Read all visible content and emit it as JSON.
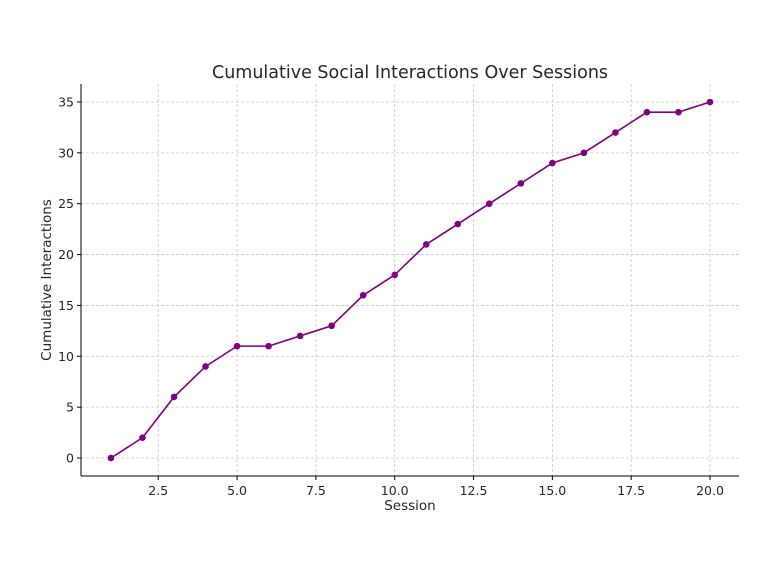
{
  "chart_data": {
    "type": "line",
    "title": "Cumulative Social Interactions Over Sessions",
    "xlabel": "Session",
    "ylabel": "Cumulative Interactions",
    "x": [
      1,
      2,
      3,
      4,
      5,
      6,
      7,
      8,
      9,
      10,
      11,
      12,
      13,
      14,
      15,
      16,
      17,
      18,
      19,
      20
    ],
    "series": [
      {
        "name": "Cumulative Interactions",
        "color": "#800080",
        "values": [
          0,
          2,
          6,
          9,
          11,
          11,
          12,
          13,
          16,
          18,
          21,
          23,
          25,
          27,
          29,
          30,
          32,
          34,
          34,
          35
        ]
      }
    ],
    "xlim": [
      0.05,
      20.92
    ],
    "ylim": [
      -1.77,
      36.77
    ],
    "xticks": [
      2.5,
      5.0,
      7.5,
      10.0,
      12.5,
      15.0,
      17.5,
      20.0
    ],
    "xtick_labels": [
      "2.5",
      "5.0",
      "7.5",
      "10.0",
      "12.5",
      "15.0",
      "17.5",
      "20.0"
    ],
    "yticks": [
      0,
      5,
      10,
      15,
      20,
      25,
      30,
      35
    ],
    "ytick_labels": [
      "0",
      "5",
      "10",
      "15",
      "20",
      "25",
      "30",
      "35"
    ],
    "grid": true,
    "legend": "none"
  }
}
